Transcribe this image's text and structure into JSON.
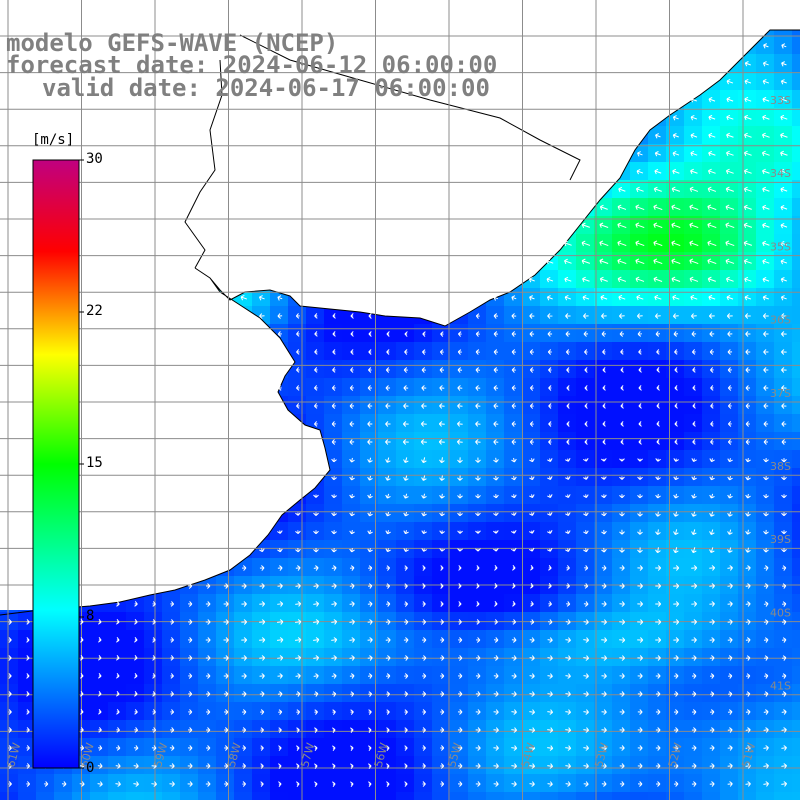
{
  "title": {
    "line1": "modelo GEFS-WAVE (NCEP)",
    "line2": "forecast date: 2024-06-12 06:00:00",
    "line3": "valid date: 2024-06-17 06:00:00"
  },
  "colorbar": {
    "unit": "[m/s]",
    "ticks": [
      "30",
      "22",
      "15",
      "8",
      "0"
    ],
    "range": [
      0,
      30
    ],
    "colors": [
      "#0000ff",
      "#00ffff",
      "#00ff00",
      "#ffff00",
      "#ff0000",
      "#c00080"
    ]
  },
  "map": {
    "land_color": "#ffffff",
    "coast_color": "#000000",
    "grid_color": "#8c8c8c",
    "lat_labels": [
      "33S",
      "34S",
      "35S",
      "36S",
      "37S",
      "38S",
      "39S",
      "40S",
      "41S"
    ],
    "lon_labels": [
      "61W",
      "60W",
      "59W",
      "58W",
      "57W",
      "56W",
      "55W",
      "54W",
      "53W",
      "52W",
      "51W"
    ]
  }
}
